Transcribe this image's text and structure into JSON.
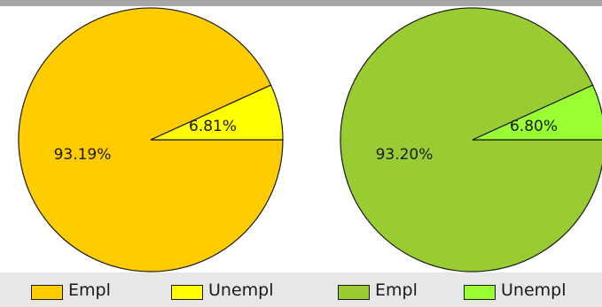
{
  "chart_data": [
    {
      "type": "pie",
      "title": "",
      "slices": [
        {
          "label": "Empl",
          "value": 93.19,
          "display": "93.19%",
          "color": "#FFCC00"
        },
        {
          "label": "Unempl",
          "value": 6.81,
          "display": "6.81%",
          "color": "#FFFF00"
        }
      ]
    },
    {
      "type": "pie",
      "title": "",
      "slices": [
        {
          "label": "Empl",
          "value": 93.2,
          "display": "93.20%",
          "color": "#99CC33"
        },
        {
          "label": "Unempl",
          "value": 6.8,
          "display": "6.80%",
          "color": "#99FF33"
        }
      ]
    }
  ],
  "legend": [
    {
      "label": "Empl",
      "color": "#FFCC00"
    },
    {
      "label": "Unempl",
      "color": "#FFFF00"
    },
    {
      "label": "Empl",
      "color": "#99CC33"
    },
    {
      "label": "Unempl",
      "color": "#99FF33"
    }
  ],
  "colors": {
    "outline": "#1a1a1a",
    "legend_bg": "#e7e7e7",
    "top_bar": "#a6a6a6"
  }
}
